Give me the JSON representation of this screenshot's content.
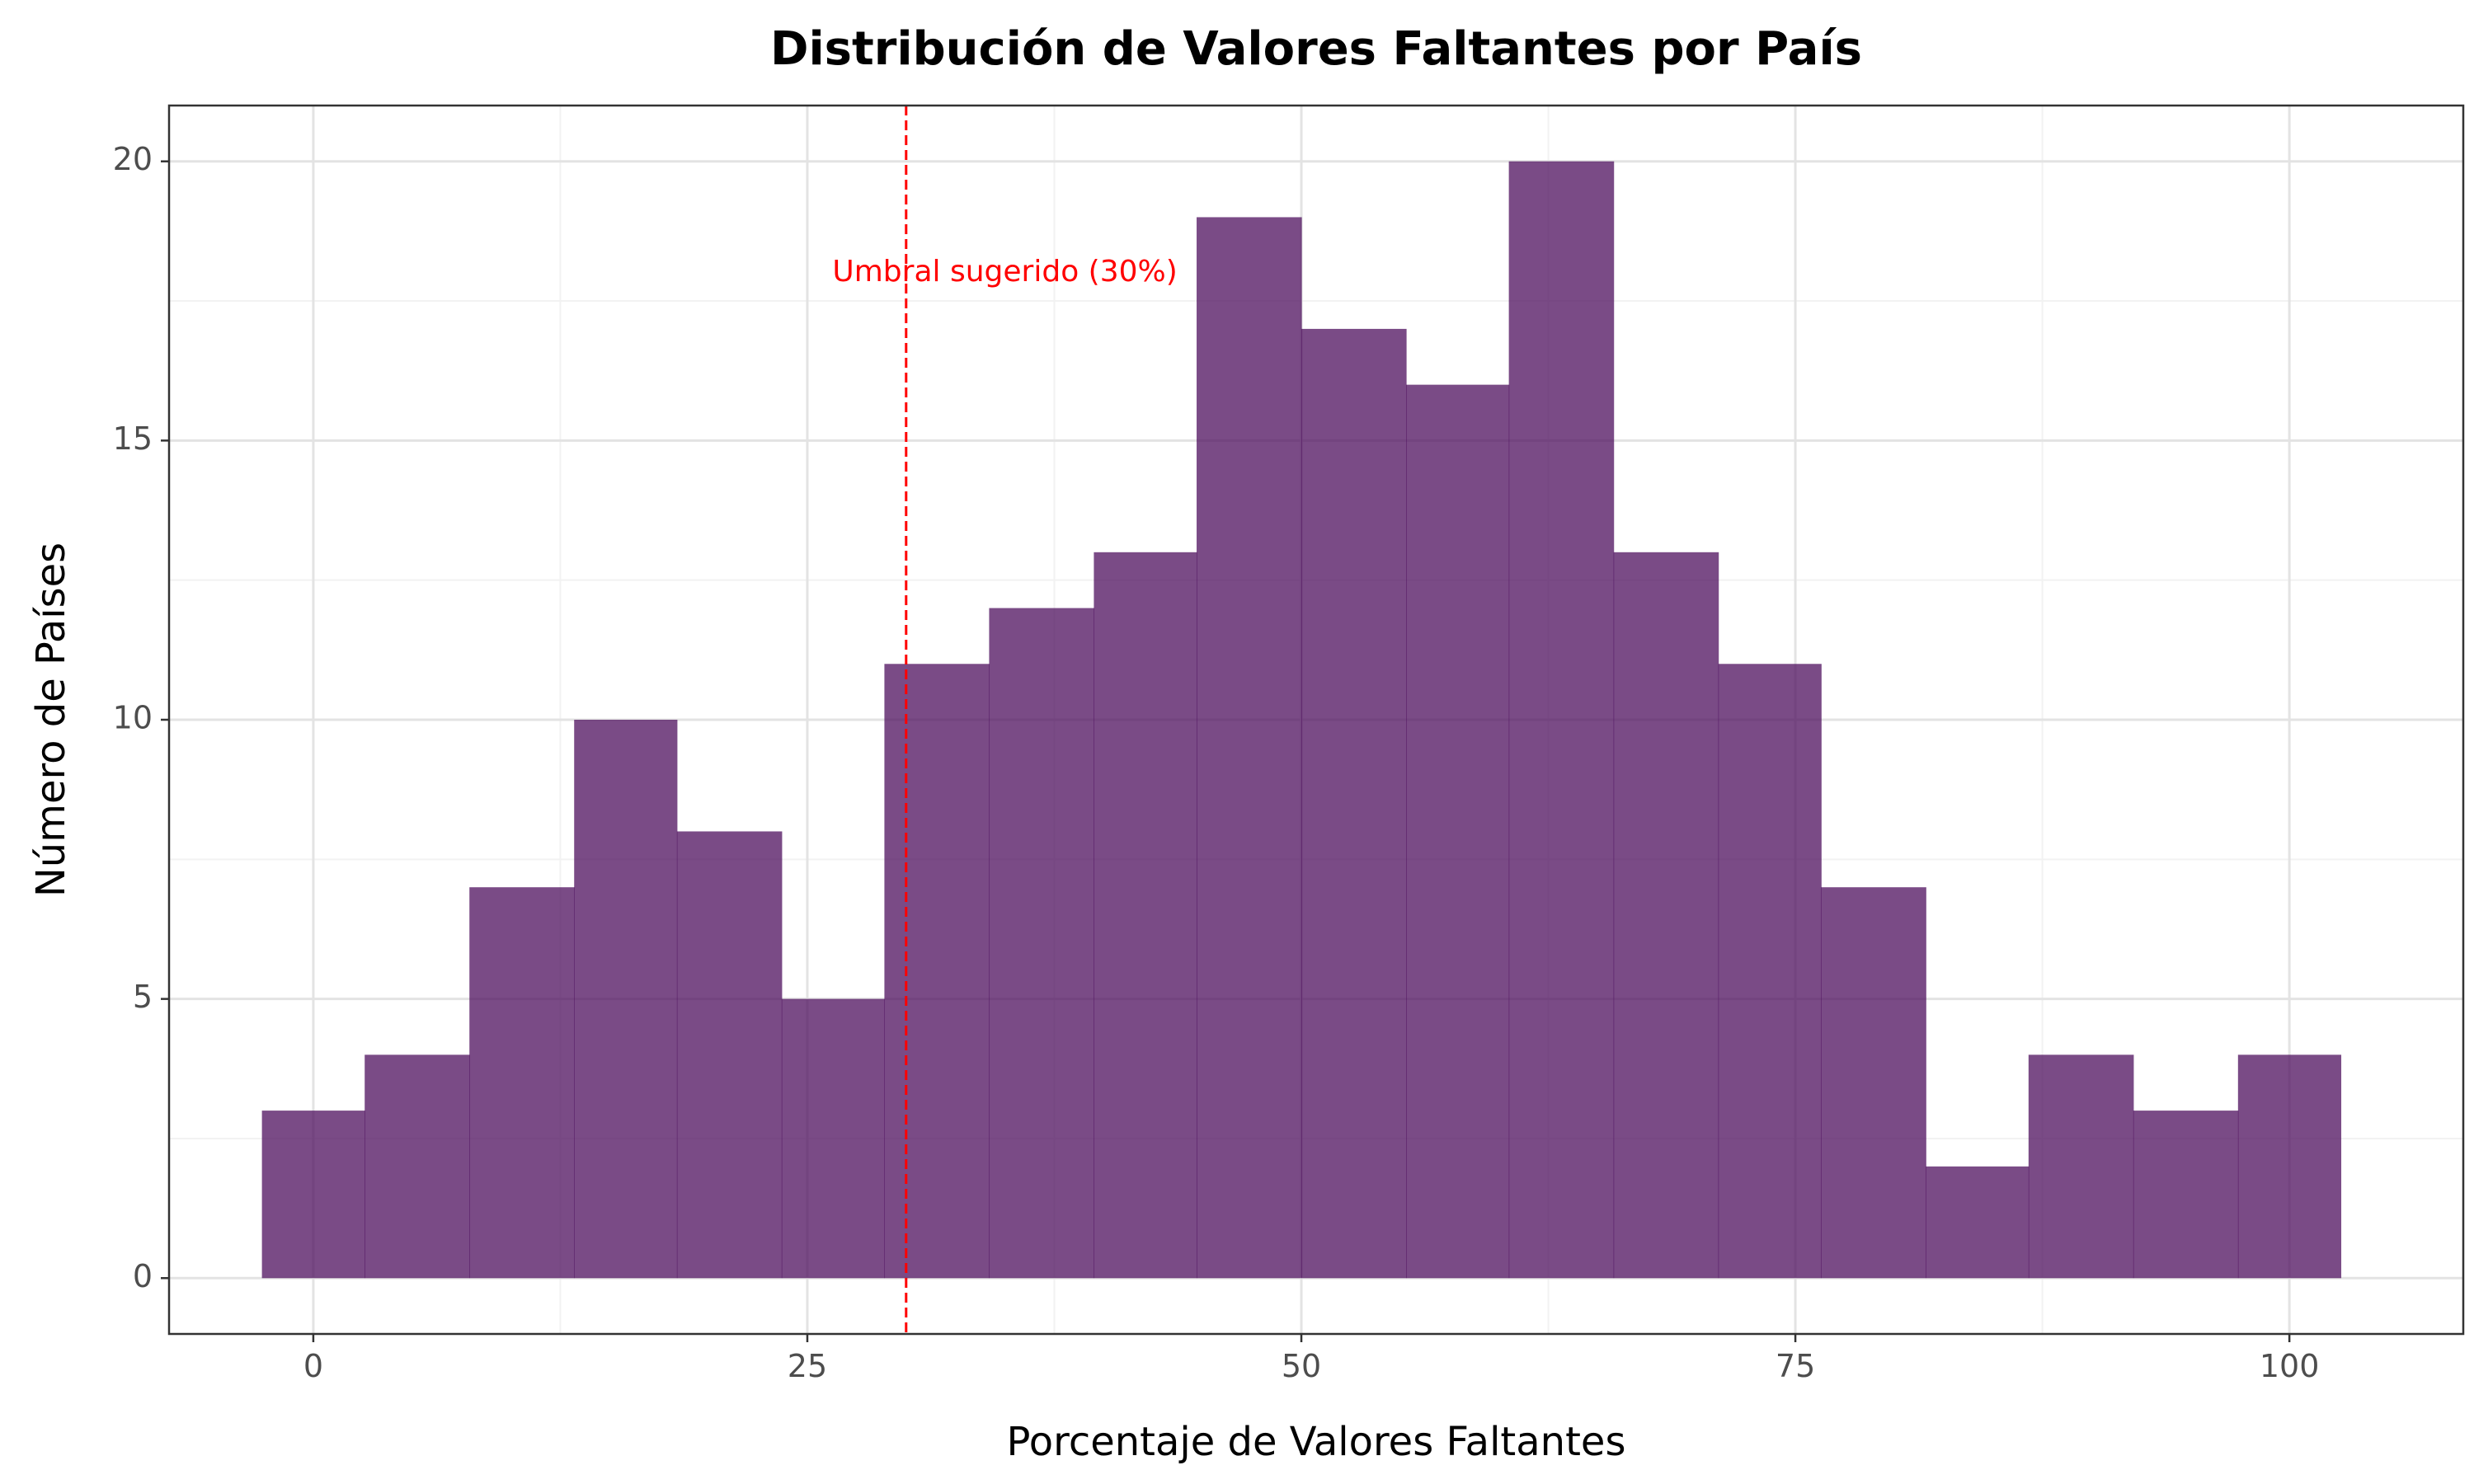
{
  "chart_data": {
    "type": "bar",
    "title": "Distribución de Valores Faltantes por País",
    "xlabel": "Porcentaje de Valores Faltantes",
    "ylabel": "Número de Países",
    "xlim": [
      -7.3,
      108.8
    ],
    "ylim": [
      -1,
      21
    ],
    "x_ticks": [
      0,
      25,
      50,
      75,
      100
    ],
    "x_tick_labels": [
      "0",
      "25",
      "50",
      "75",
      "100"
    ],
    "y_ticks": [
      0,
      5,
      10,
      15,
      20
    ],
    "y_tick_labels": [
      "0",
      "5",
      "10",
      "15",
      "20"
    ],
    "grid": true,
    "bar_color": "#4b0c5c",
    "bar_opacity": 0.74,
    "bins": [
      {
        "x0": -2.6,
        "x1": 2.6,
        "count": 3
      },
      {
        "x0": 2.6,
        "x1": 7.9,
        "count": 4
      },
      {
        "x0": 7.9,
        "x1": 13.2,
        "count": 7
      },
      {
        "x0": 13.2,
        "x1": 18.4,
        "count": 10
      },
      {
        "x0": 18.4,
        "x1": 23.7,
        "count": 8
      },
      {
        "x0": 23.7,
        "x1": 28.9,
        "count": 5
      },
      {
        "x0": 28.9,
        "x1": 34.2,
        "count": 11
      },
      {
        "x0": 34.2,
        "x1": 39.5,
        "count": 12
      },
      {
        "x0": 39.5,
        "x1": 44.7,
        "count": 13
      },
      {
        "x0": 44.7,
        "x1": 50.0,
        "count": 19
      },
      {
        "x0": 50.0,
        "x1": 55.3,
        "count": 17
      },
      {
        "x0": 55.3,
        "x1": 60.5,
        "count": 16
      },
      {
        "x0": 60.5,
        "x1": 65.8,
        "count": 20
      },
      {
        "x0": 65.8,
        "x1": 71.1,
        "count": 13
      },
      {
        "x0": 71.1,
        "x1": 76.3,
        "count": 11
      },
      {
        "x0": 76.3,
        "x1": 81.6,
        "count": 7
      },
      {
        "x0": 81.6,
        "x1": 86.8,
        "count": 2
      },
      {
        "x0": 86.8,
        "x1": 92.1,
        "count": 4
      },
      {
        "x0": 92.1,
        "x1": 97.4,
        "count": 3
      },
      {
        "x0": 97.4,
        "x1": 102.6,
        "count": 4
      }
    ],
    "reference_line": {
      "x": 30,
      "label": "Umbral sugerido (30%)",
      "label_x": 35,
      "label_y": 18,
      "color": "#ff0000",
      "style": "dashed"
    }
  }
}
